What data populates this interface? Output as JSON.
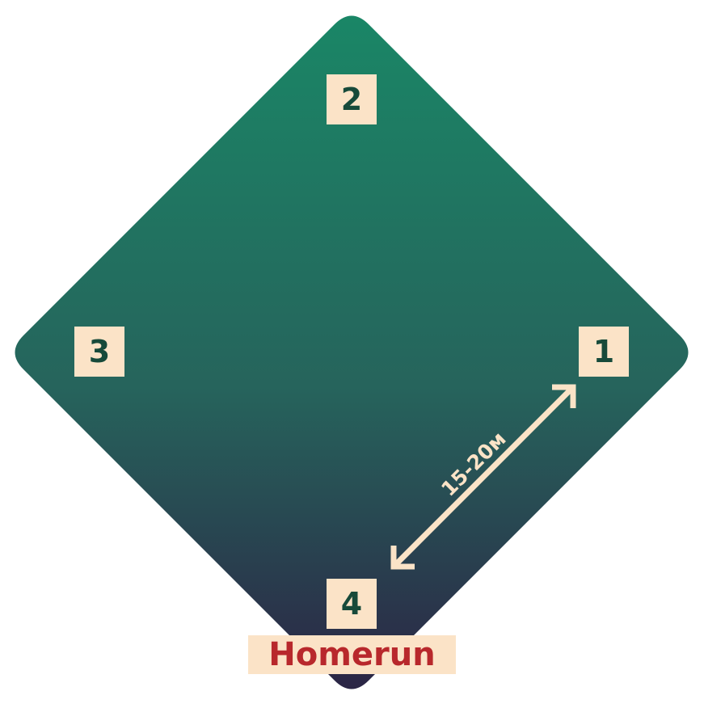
{
  "bases": {
    "first": "1",
    "second": "2",
    "third": "3",
    "home": "4"
  },
  "home_label": "Homerun",
  "distance_label": "15-20м",
  "colors": {
    "field_top": "#1a8666",
    "field_bottom": "#2b2545",
    "base_fill": "#fbe3c7",
    "base_text": "#174a3a",
    "home_text": "#b8282c",
    "arrow": "#fbe3c7"
  }
}
